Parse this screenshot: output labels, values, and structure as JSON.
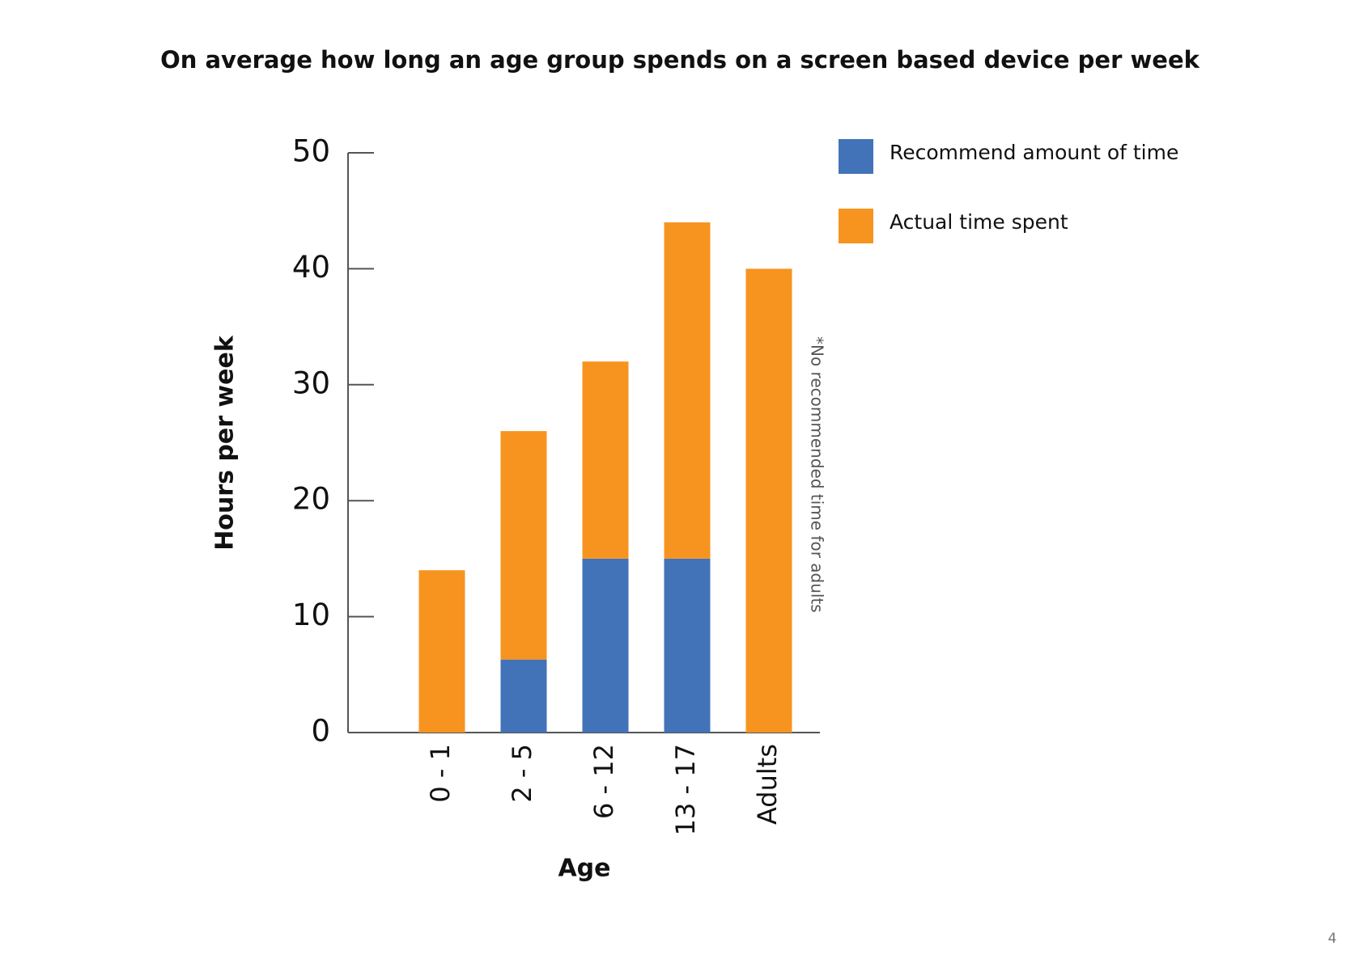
{
  "chart_data": {
    "type": "stacked_bar",
    "title": "On average how long an age group spends on a screen based device per week",
    "x_label": "Age",
    "y_label": "Hours per week",
    "categories": [
      "0 - 1",
      "2 - 5",
      "6 - 12",
      "13 - 17",
      "Adults"
    ],
    "series": [
      {
        "name": "Recommend amount of time",
        "color": "#4273b9",
        "values": [
          0,
          6.3,
          15,
          15,
          null
        ]
      },
      {
        "name": "Actual time spent",
        "color": "#f7941f",
        "values": [
          14,
          19.7,
          17,
          29,
          40
        ]
      }
    ],
    "ylim": [
      0,
      50
    ],
    "yticks": [
      0,
      10,
      20,
      30,
      40,
      50
    ],
    "annotation": "*No recommended time for adults",
    "page_number": "4"
  }
}
